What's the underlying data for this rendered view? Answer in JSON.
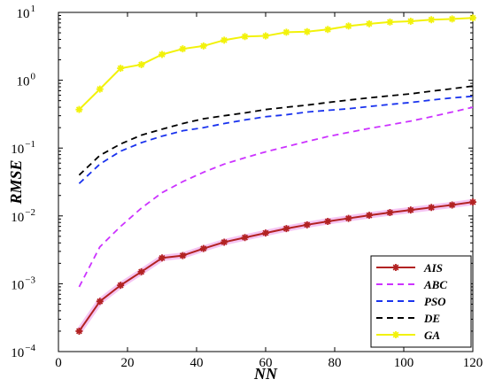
{
  "chart_data": {
    "type": "line",
    "title": "",
    "xlabel": "NN",
    "ylabel": "RMSE",
    "xlim": [
      0,
      120
    ],
    "ylim": [
      0.0001,
      10
    ],
    "yscale": "log",
    "xticks": [
      "0",
      "20",
      "40",
      "60",
      "80",
      "100",
      "120"
    ],
    "ytick_exponents": [
      -4,
      -3,
      -2,
      -1,
      0,
      1
    ],
    "ytick_base": "10",
    "grid": false,
    "legend_position": "lower-right",
    "x": [
      6,
      12,
      18,
      24,
      30,
      36,
      42,
      48,
      54,
      60,
      66,
      72,
      78,
      84,
      90,
      96,
      102,
      108,
      114,
      120
    ],
    "series": [
      {
        "name": "AIS",
        "color": "#b22222",
        "style": "solid-star",
        "values": [
          0.0002,
          0.00055,
          0.00095,
          0.0015,
          0.0024,
          0.0026,
          0.0033,
          0.0041,
          0.0048,
          0.0056,
          0.0065,
          0.0074,
          0.0083,
          0.0092,
          0.0102,
          0.0112,
          0.0122,
          0.0133,
          0.0145,
          0.016
        ]
      },
      {
        "name": "ABC",
        "color": "#cc33ff",
        "style": "dashed",
        "values": [
          0.0009,
          0.0035,
          0.007,
          0.013,
          0.022,
          0.032,
          0.044,
          0.058,
          0.072,
          0.088,
          0.105,
          0.125,
          0.148,
          0.17,
          0.195,
          0.22,
          0.25,
          0.29,
          0.34,
          0.4
        ]
      },
      {
        "name": "PSO",
        "color": "#1a33ee",
        "style": "dashed",
        "values": [
          0.03,
          0.058,
          0.09,
          0.12,
          0.15,
          0.18,
          0.2,
          0.23,
          0.26,
          0.29,
          0.31,
          0.34,
          0.36,
          0.38,
          0.41,
          0.44,
          0.47,
          0.51,
          0.55,
          0.58
        ]
      },
      {
        "name": "DE",
        "color": "#000000",
        "style": "dashed",
        "values": [
          0.04,
          0.078,
          0.115,
          0.155,
          0.19,
          0.23,
          0.27,
          0.3,
          0.33,
          0.37,
          0.4,
          0.43,
          0.47,
          0.51,
          0.55,
          0.59,
          0.63,
          0.69,
          0.75,
          0.82
        ]
      },
      {
        "name": "GA",
        "color": "#f2f20a",
        "style": "solid-star",
        "values": [
          0.37,
          0.74,
          1.5,
          1.7,
          2.4,
          2.9,
          3.2,
          3.9,
          4.4,
          4.5,
          5.1,
          5.2,
          5.6,
          6.3,
          6.8,
          7.2,
          7.4,
          7.8,
          8.0,
          8.3
        ]
      }
    ]
  }
}
